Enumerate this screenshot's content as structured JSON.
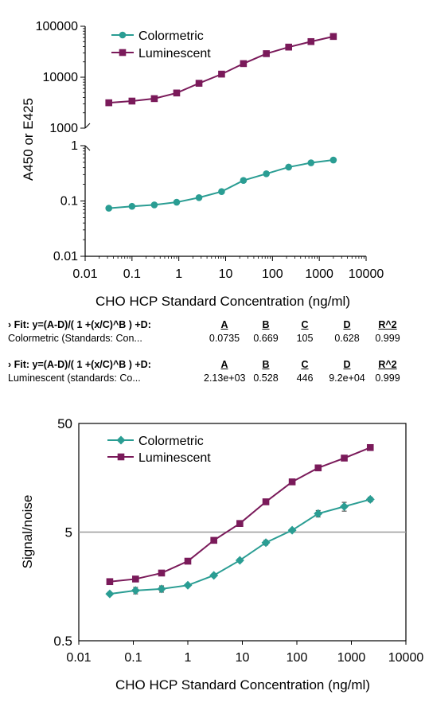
{
  "chart_data": [
    {
      "type": "line",
      "xscale": "log",
      "yscale": "log",
      "xlabel": "CHO HCP Standard Concentration (ng/ml)",
      "ylabel": "A450 or E425",
      "xlim": [
        0.01,
        10000
      ],
      "x_ticks": [
        "0.01",
        "0.1",
        "1",
        "10",
        "100",
        "1000",
        "10000"
      ],
      "y_ticks_upper": [
        "100000",
        "10000",
        "1000"
      ],
      "y_ticks_lower": [
        "1",
        "0.1",
        "0.01"
      ],
      "ylim_upper": [
        1000,
        100000
      ],
      "ylim_lower": [
        0.01,
        1
      ],
      "broken_axis": true,
      "legend_position": "top-left",
      "x": [
        0.032,
        0.1,
        0.3,
        0.9,
        2.7,
        8.2,
        24,
        74,
        222,
        666,
        2000
      ],
      "series": [
        {
          "name": "Colormetric",
          "color": "#2a9d93",
          "marker": "circle",
          "panel": "lower",
          "values": [
            0.074,
            0.08,
            0.085,
            0.095,
            0.115,
            0.148,
            0.235,
            0.31,
            0.41,
            0.49,
            0.55
          ]
        },
        {
          "name": "Luminescent",
          "color": "#7a1a5a",
          "marker": "square",
          "panel": "upper",
          "values": [
            3150,
            3400,
            3800,
            4900,
            7600,
            11500,
            18500,
            29000,
            39000,
            50000,
            63000
          ]
        }
      ]
    },
    {
      "type": "line",
      "xscale": "log",
      "yscale": "log",
      "xlabel": "CHO HCP Standard Concentration (ng/ml)",
      "ylabel": "Signal/noise",
      "xlim": [
        0.01,
        10000
      ],
      "ylim": [
        0.5,
        50
      ],
      "x_ticks": [
        "0.01",
        "0.1",
        "1",
        "10",
        "100",
        "1000",
        "10000"
      ],
      "y_ticks": [
        "50",
        "5",
        "0.5"
      ],
      "reference_line": 5,
      "legend_position": "top-left",
      "x": [
        0.037,
        0.11,
        0.33,
        1,
        3,
        9,
        27,
        82,
        246,
        740,
        2222
      ],
      "series": [
        {
          "name": "Colormetric",
          "color": "#2a9d93",
          "marker": "diamond",
          "values": [
            1.35,
            1.45,
            1.5,
            1.62,
            2.0,
            2.75,
            4.0,
            5.2,
            7.4,
            8.6,
            10.0
          ],
          "errors": [
            0.05,
            0.1,
            0.1,
            0.05,
            0.07,
            0.1,
            0.2,
            0.15,
            0.5,
            0.8,
            0.5
          ]
        },
        {
          "name": "Luminescent",
          "color": "#7a1a5a",
          "marker": "square",
          "values": [
            1.75,
            1.85,
            2.1,
            2.7,
            4.2,
            6.0,
            9.5,
            14.5,
            19.5,
            24.0,
            30.0
          ],
          "errors": [
            0.05,
            0.05,
            0.1,
            0.05,
            0.05,
            0.1,
            0.1,
            0.2,
            0.3,
            0.3,
            0.5
          ]
        }
      ]
    }
  ],
  "fits": [
    {
      "header": "› Fit: y=(A-D)/( 1 +(x/C)^B ) +D:",
      "columns": [
        "A",
        "B",
        "C",
        "D",
        "R^2"
      ],
      "label": "Colormetric (Standards: Con...",
      "values": [
        "0.0735",
        "0.669",
        "105",
        "0.628",
        "0.999"
      ]
    },
    {
      "header": "› Fit: y=(A-D)/( 1 +(x/C)^B ) +D:",
      "columns": [
        "A",
        "B",
        "C",
        "D",
        "R^2"
      ],
      "label": "Luminescent (standards: Co...",
      "values": [
        "2.13e+03",
        "0.528",
        "446",
        "9.2e+04",
        "0.999"
      ]
    }
  ]
}
